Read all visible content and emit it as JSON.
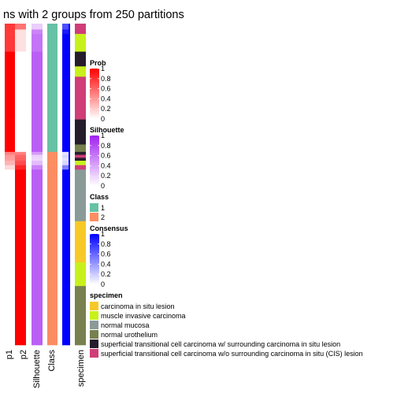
{
  "chart_data": {
    "type": "heatmap",
    "title": "ns with 2 groups from 250 partitions",
    "columns": [
      "p1",
      "p2",
      "Silhouette",
      "Class",
      "",
      "specimen"
    ],
    "row_blocks": [
      {
        "p1": 0.78,
        "p2": 0.55,
        "silhouette": 0.22,
        "class": 1,
        "consensus": 0.7,
        "specimen": "superficial transitional cell carcinoma w/o surrounding carcinoma in situ (CIS) lesion",
        "weight": 4
      },
      {
        "p1": 0.78,
        "p2": 0.12,
        "silhouette": 0.55,
        "class": 1,
        "consensus": 0.9,
        "specimen": "superficial transitional cell carcinoma w/o surrounding carcinoma in situ (CIS) lesion",
        "weight": 3
      },
      {
        "p1": 0.78,
        "p2": 0.12,
        "silhouette": 0.62,
        "class": 1,
        "consensus": 1.0,
        "specimen": "muscle invasive carcinoma",
        "weight": 12
      },
      {
        "p1": 1.0,
        "p2": 0.0,
        "silhouette": 0.72,
        "class": 1,
        "consensus": 1.0,
        "specimen": "superficial transitional cell carcinoma w/ surrounding carcinoma in situ lesion",
        "weight": 10
      },
      {
        "p1": 1.0,
        "p2": 0.0,
        "silhouette": 0.72,
        "class": 1,
        "consensus": 1.0,
        "specimen": "muscle invasive carcinoma",
        "weight": 7
      },
      {
        "p1": 1.0,
        "p2": 0.0,
        "silhouette": 0.72,
        "class": 1,
        "consensus": 1.0,
        "specimen": "superficial transitional cell carcinoma w/o surrounding carcinoma in situ (CIS) lesion",
        "weight": 29
      },
      {
        "p1": 1.0,
        "p2": 0.0,
        "silhouette": 0.72,
        "class": 1,
        "consensus": 1.0,
        "specimen": "superficial transitional cell carcinoma w/ surrounding carcinoma in situ lesion",
        "weight": 17
      },
      {
        "p1": 1.0,
        "p2": 0.0,
        "silhouette": 0.72,
        "class": 1,
        "consensus": 1.0,
        "specimen": "normal urothelium",
        "weight": 5
      },
      {
        "p1": 0.5,
        "p2": 0.5,
        "silhouette": 0.45,
        "class": 2,
        "consensus": 0.1,
        "specimen": "superficial transitional cell carcinoma w/ surrounding carcinoma in situ lesion",
        "weight": 2
      },
      {
        "p1": 0.4,
        "p2": 0.6,
        "silhouette": 0.2,
        "class": 2,
        "consensus": 0.15,
        "specimen": "superficial transitional cell carcinoma w/o surrounding carcinoma in situ (CIS) lesion",
        "weight": 2
      },
      {
        "p1": 0.38,
        "p2": 0.62,
        "silhouette": 0.18,
        "class": 2,
        "consensus": 0.1,
        "specimen": "superficial transitional cell carcinoma w/ surrounding carcinoma in situ lesion",
        "weight": 2
      },
      {
        "p1": 0.3,
        "p2": 0.7,
        "silhouette": 0.3,
        "class": 2,
        "consensus": 0.15,
        "specimen": "muscle invasive carcinoma",
        "weight": 3
      },
      {
        "p1": 0.15,
        "p2": 0.85,
        "silhouette": 0.55,
        "class": 2,
        "consensus": 0.5,
        "specimen": "superficial transitional cell carcinoma w/o surrounding carcinoma in situ (CIS) lesion",
        "weight": 3
      },
      {
        "p1": 0.0,
        "p2": 1.0,
        "silhouette": 0.72,
        "class": 2,
        "consensus": 1.0,
        "specimen": "normal mucosa",
        "weight": 7
      },
      {
        "p1": 0.0,
        "p2": 1.0,
        "silhouette": 0.72,
        "class": 2,
        "consensus": 1.0,
        "specimen": "normal mucosa",
        "weight": 28
      },
      {
        "p1": 0.0,
        "p2": 1.0,
        "silhouette": 0.72,
        "class": 2,
        "consensus": 1.0,
        "specimen": "carcinoma in situ lesion",
        "weight": 28
      },
      {
        "p1": 0.0,
        "p2": 1.0,
        "silhouette": 0.72,
        "class": 2,
        "consensus": 1.0,
        "specimen": "muscle invasive carcinoma",
        "weight": 16
      },
      {
        "p1": 0.0,
        "p2": 1.0,
        "silhouette": 0.72,
        "class": 2,
        "consensus": 1.0,
        "specimen": "normal urothelium",
        "weight": 40
      }
    ],
    "legends": [
      {
        "title": "Prob",
        "type": "continuous",
        "ticks": [
          "1",
          "0.8",
          "0.6",
          "0.4",
          "0.2",
          "0"
        ],
        "colors": [
          "#ff0000",
          "#ffffff"
        ]
      },
      {
        "title": "Silhouette",
        "type": "continuous",
        "ticks": [
          "1",
          "0.8",
          "0.6",
          "0.4",
          "0.2",
          "0"
        ],
        "colors": [
          "#a020f0",
          "#ffffff"
        ]
      },
      {
        "title": "Class",
        "type": "discrete",
        "items": [
          {
            "label": "1",
            "color": "#66c2a5"
          },
          {
            "label": "2",
            "color": "#fc8d62"
          }
        ]
      },
      {
        "title": "Consensus",
        "type": "continuous",
        "ticks": [
          "1",
          "0.8",
          "0.6",
          "0.4",
          "0.2",
          "0"
        ],
        "colors": [
          "#0000ff",
          "#ffffff"
        ]
      },
      {
        "title": "specimen",
        "type": "discrete",
        "items": [
          {
            "label": "carcinoma in situ lesion",
            "color": "#f7c928"
          },
          {
            "label": "muscle invasive carcinoma",
            "color": "#c8f11c"
          },
          {
            "label": "normal mucosa",
            "color": "#8a9a97"
          },
          {
            "label": "normal urothelium",
            "color": "#77804e"
          },
          {
            "label": "superficial transitional cell carcinoma w/ surrounding carcinoma in situ lesion",
            "color": "#261d2c"
          },
          {
            "label": "superficial transitional cell carcinoma w/o surrounding carcinoma in situ (CIS) lesion",
            "color": "#d03d78"
          }
        ]
      }
    ]
  }
}
